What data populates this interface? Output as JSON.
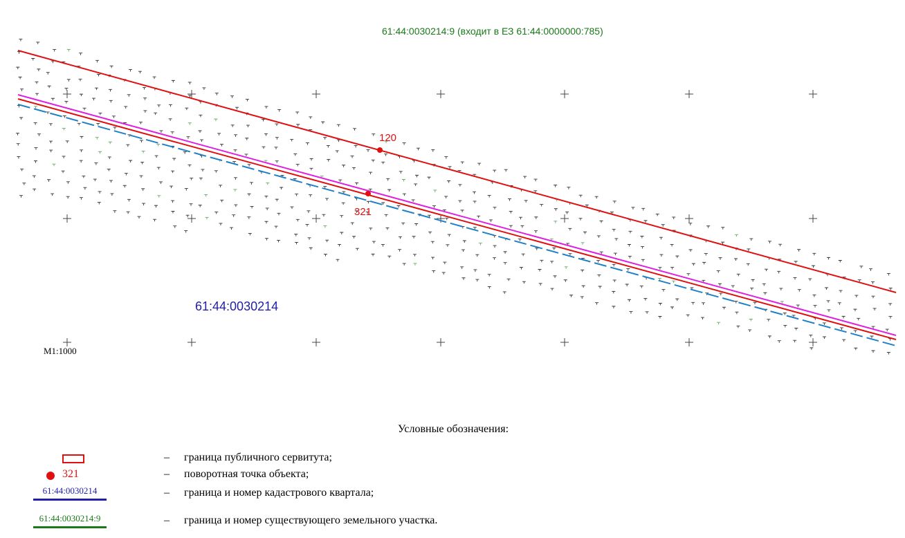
{
  "map": {
    "parcel_label": "61:44:0030214:9 (входит в ЕЗ 61:44:0000000:785)",
    "quarter_label": "61:44:0030214",
    "scale": "М1:1000",
    "points": [
      {
        "label": "120"
      },
      {
        "label": "321"
      }
    ],
    "colors": {
      "servitude": "#e01010",
      "quarter": "#1f1fa8",
      "parcel": "#1a7a1a",
      "magenta_line": "#e020e0",
      "dashed_line": "#1f80c8"
    }
  },
  "legend": {
    "title": "Условные обозначения:",
    "items": [
      {
        "symbol": "rect",
        "text": "граница публичного сервитута;"
      },
      {
        "symbol": "point",
        "symbol_label": "321",
        "text": "поворотная точка объекта;"
      },
      {
        "symbol": "line-blue",
        "symbol_label": "61:44:0030214",
        "text": "граница и номер кадастрового квартала;"
      },
      {
        "symbol": "line-green",
        "symbol_label": "61:44:0030214:9",
        "text": "граница и номер существующего земельного участка."
      }
    ],
    "dash": "–"
  }
}
